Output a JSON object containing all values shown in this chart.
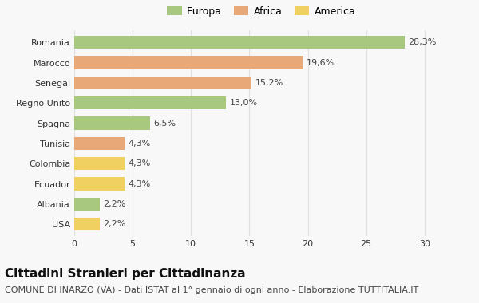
{
  "categories": [
    "Romania",
    "Marocco",
    "Senegal",
    "Regno Unito",
    "Spagna",
    "Tunisia",
    "Colombia",
    "Ecuador",
    "Albania",
    "USA"
  ],
  "values": [
    28.3,
    19.6,
    15.2,
    13.0,
    6.5,
    4.3,
    4.3,
    4.3,
    2.2,
    2.2
  ],
  "colors": [
    "#a8c880",
    "#e8a878",
    "#e8a878",
    "#a8c880",
    "#a8c880",
    "#e8a878",
    "#f0d060",
    "#f0d060",
    "#a8c880",
    "#f0d060"
  ],
  "legend_labels": [
    "Europa",
    "Africa",
    "America"
  ],
  "legend_colors": [
    "#a8c880",
    "#e8a878",
    "#f0d060"
  ],
  "title": "Cittadini Stranieri per Cittadinanza",
  "subtitle": "COMUNE DI INARZO (VA) - Dati ISTAT al 1° gennaio di ogni anno - Elaborazione TUTTITALIA.IT",
  "xlim": [
    0,
    32
  ],
  "xticks": [
    0,
    5,
    10,
    15,
    20,
    25,
    30
  ],
  "background_color": "#f8f8f8",
  "grid_color": "#e0e0e0",
  "bar_height": 0.65,
  "title_fontsize": 11,
  "subtitle_fontsize": 8,
  "label_fontsize": 8,
  "tick_fontsize": 8
}
